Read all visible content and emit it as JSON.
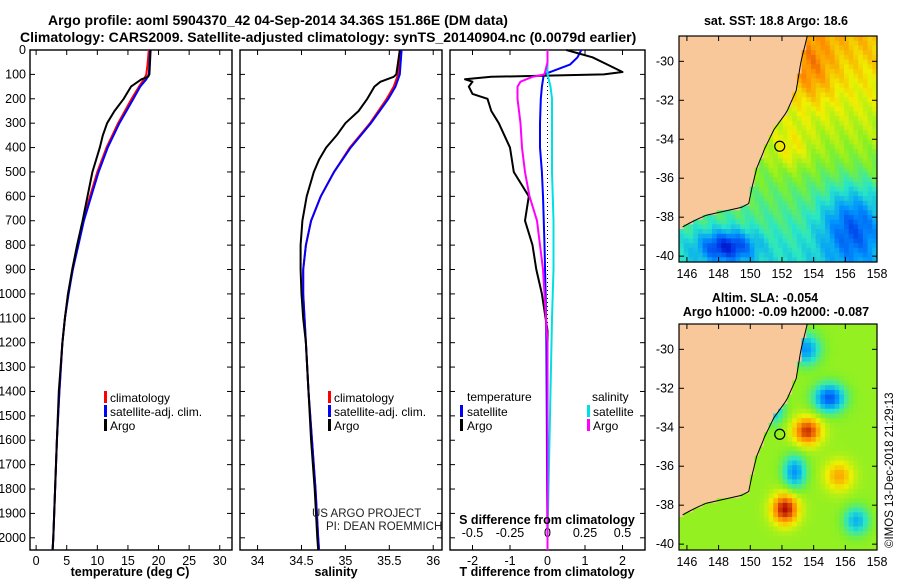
{
  "header": {
    "line1": "Argo profile: aoml 5904370_42 04-Sep-2014 34.36S 151.86E (DM data)",
    "line2": "Climatology: CARS2009. Satellite-adjusted climatology: synTS_20140904.nc (0.0079d earlier)"
  },
  "map_sst": {
    "title": "sat. SST: 18.8 Argo: 18.6",
    "lon_ticks": [
      "146",
      "148",
      "150",
      "152",
      "154",
      "156",
      "158"
    ],
    "lat_ticks": [
      "-30",
      "-32",
      "-34",
      "-36",
      "-38",
      "-40"
    ],
    "lon_range": [
      145.5,
      158
    ],
    "lat_range": [
      -40.3,
      -28.7
    ],
    "argo_position": {
      "lon": 151.86,
      "lat": -34.36
    }
  },
  "map_sla": {
    "title_line1": "Altim. SLA: -0.054",
    "title_line2": "Argo h1000: -0.09 h2000: -0.087",
    "lon_ticks": [
      "146",
      "148",
      "150",
      "152",
      "154",
      "156",
      "158"
    ],
    "lat_ticks": [
      "-30",
      "-32",
      "-34",
      "-36",
      "-38",
      "-40"
    ],
    "lon_range": [
      145.5,
      158
    ],
    "lat_range": [
      -40.3,
      -28.7
    ],
    "argo_position": {
      "lon": 151.86,
      "lat": -34.36
    }
  },
  "credits": {
    "project_line1": "US ARGO PROJECT",
    "project_line2": "PI: DEAN ROEMMICH",
    "stamp": "©IMOS 13-Dec-2018 21:29:13"
  },
  "colors": {
    "climatology": "#ff0000",
    "satellite": "#0000ff",
    "argo": "#000000",
    "satellite_s": "#00e0e0",
    "argo_s": "#ff00ff",
    "land": "#f8c89a"
  },
  "chart_data": [
    {
      "type": "line",
      "xlabel": "temperature (deg C)",
      "ylabel": "",
      "xlim": [
        -1,
        32
      ],
      "ylim": [
        2050,
        0
      ],
      "x_ticks": [
        "0",
        "5",
        "10",
        "15",
        "20",
        "25",
        "30"
      ],
      "y_ticks": [
        "0",
        "100",
        "200",
        "300",
        "400",
        "500",
        "600",
        "700",
        "800",
        "900",
        "1000",
        "1100",
        "1200",
        "1300",
        "1400",
        "1500",
        "1600",
        "1700",
        "1800",
        "1900",
        "2000"
      ],
      "legend": [
        "climatology",
        "satellite-adj. clim.",
        "Argo"
      ],
      "series": [
        {
          "name": "climatology",
          "depth": [
            0,
            60,
            100,
            120,
            150,
            200,
            300,
            400,
            500,
            600,
            700,
            800,
            900,
            1000,
            1100,
            1200,
            1400,
            1600,
            1800,
            2000,
            2050
          ],
          "values": [
            18.4,
            18.2,
            18.0,
            17.6,
            16.8,
            15.6,
            13.4,
            11.5,
            10.0,
            8.8,
            7.7,
            6.8,
            6.0,
            5.2,
            4.7,
            4.3,
            3.8,
            3.4,
            3.1,
            2.8,
            2.7
          ]
        },
        {
          "name": "satellite-adj. clim.",
          "depth": [
            0,
            60,
            100,
            120,
            150,
            200,
            300,
            400,
            500,
            600,
            700,
            800,
            900,
            1000,
            1100,
            1200,
            1400,
            1600,
            1800,
            2000,
            2050
          ],
          "values": [
            18.6,
            18.5,
            18.4,
            18.0,
            17.0,
            15.9,
            13.6,
            11.7,
            10.2,
            9.0,
            7.8,
            6.9,
            6.0,
            5.3,
            4.7,
            4.3,
            3.8,
            3.4,
            3.1,
            2.8,
            2.7
          ]
        },
        {
          "name": "Argo",
          "depth": [
            0,
            50,
            100,
            110,
            120,
            150,
            200,
            250,
            300,
            350,
            400,
            450,
            500,
            600,
            700,
            800,
            900,
            1000,
            1100,
            1200,
            1400,
            1600,
            1800,
            2000,
            2050
          ],
          "values": [
            18.7,
            18.6,
            18.5,
            18.3,
            17.2,
            15.5,
            14.3,
            12.8,
            11.6,
            10.9,
            10.4,
            9.8,
            9.2,
            8.4,
            7.6,
            6.7,
            5.9,
            5.2,
            4.7,
            4.3,
            3.7,
            3.4,
            3.1,
            2.8,
            2.7
          ]
        }
      ]
    },
    {
      "type": "line",
      "xlabel": "salinity",
      "ylabel": "",
      "xlim": [
        33.8,
        36.1
      ],
      "ylim": [
        2050,
        0
      ],
      "x_ticks": [
        "34",
        "34.5",
        "35",
        "35.5",
        "36"
      ],
      "legend": [
        "climatology",
        "satellite-adj. clim.",
        "Argo"
      ],
      "series": [
        {
          "name": "climatology",
          "depth": [
            0,
            100,
            150,
            200,
            300,
            400,
            500,
            600,
            700,
            800,
            900,
            1000,
            1200,
            1400,
            1600,
            1800,
            2000,
            2050
          ],
          "values": [
            35.62,
            35.6,
            35.55,
            35.47,
            35.28,
            35.05,
            34.87,
            34.72,
            34.61,
            34.55,
            34.52,
            34.52,
            34.55,
            34.58,
            34.62,
            34.66,
            34.69,
            34.7
          ]
        },
        {
          "name": "satellite-adj. clim.",
          "depth": [
            0,
            100,
            150,
            200,
            300,
            400,
            500,
            600,
            700,
            800,
            900,
            1000,
            1200,
            1400,
            1600,
            1800,
            2000,
            2050
          ],
          "values": [
            35.64,
            35.62,
            35.57,
            35.49,
            35.29,
            35.06,
            34.87,
            34.72,
            34.61,
            34.55,
            34.52,
            34.52,
            34.55,
            34.58,
            34.62,
            34.66,
            34.69,
            34.7
          ]
        },
        {
          "name": "Argo",
          "depth": [
            0,
            50,
            100,
            110,
            130,
            150,
            200,
            250,
            300,
            350,
            400,
            450,
            500,
            600,
            700,
            800,
            900,
            1000,
            1100,
            1200,
            1400,
            1600,
            1800,
            2000,
            2050
          ],
          "values": [
            35.62,
            35.6,
            35.58,
            35.55,
            35.4,
            35.33,
            35.25,
            35.15,
            35.0,
            34.9,
            34.78,
            34.7,
            34.64,
            34.56,
            34.51,
            34.49,
            34.49,
            34.5,
            34.52,
            34.55,
            34.58,
            34.61,
            34.65,
            34.68,
            34.69
          ]
        }
      ]
    },
    {
      "type": "line",
      "xlabel": "T difference from climatology",
      "top_xlabel": "S difference from climatology",
      "xlim": [
        -2.6,
        2.6
      ],
      "ylim": [
        2050,
        0
      ],
      "x_ticks": [
        "-2",
        "-1",
        "0",
        "1",
        "2"
      ],
      "top_x_ticks": [
        "-0.5",
        "-0.25",
        "0",
        "0.25",
        "0.5"
      ],
      "top_xlim": [
        -0.65,
        0.65
      ],
      "legend_headers": [
        "temperature",
        "salinity"
      ],
      "legend_left": [
        "satellite",
        "Argo"
      ],
      "legend_right": [
        "satellite",
        "Argo"
      ],
      "series": [
        {
          "name": "temperature satellite",
          "depth": [
            0,
            30,
            60,
            100,
            150,
            200,
            300,
            400,
            500,
            600,
            800,
            1000,
            1200,
            1500,
            1800,
            2000,
            2050
          ],
          "values": [
            0.9,
            0.8,
            0.6,
            -0.1,
            -0.15,
            -0.18,
            -0.2,
            -0.2,
            -0.15,
            -0.12,
            -0.08,
            -0.05,
            -0.03,
            -0.02,
            -0.01,
            0,
            0
          ]
        },
        {
          "name": "temperature Argo",
          "depth": [
            0,
            30,
            60,
            90,
            100,
            110,
            120,
            130,
            150,
            180,
            200,
            250,
            300,
            400,
            500,
            600,
            700,
            800,
            900,
            1000,
            1100,
            1150,
            1200,
            1500,
            1800,
            2000,
            2050
          ],
          "values": [
            0.5,
            1.2,
            1.6,
            2.0,
            1.5,
            -1.5,
            -2.2,
            -2.0,
            -2.1,
            -2.0,
            -1.6,
            -1.5,
            -1.3,
            -1.0,
            -0.9,
            -0.5,
            -0.6,
            -0.4,
            -0.3,
            -0.15,
            -0.05,
            0,
            0,
            0,
            0,
            0,
            0
          ]
        },
        {
          "name": "salinity satellite",
          "depth": [
            0,
            50,
            100,
            150,
            200,
            300,
            500,
            700,
            900,
            1100,
            1400,
            1700,
            2000,
            2050
          ],
          "values": [
            0.0,
            0.0,
            0.0,
            0.02,
            0.03,
            0.03,
            0.03,
            0.04,
            0.04,
            0.03,
            0.02,
            0.01,
            0,
            0
          ]
        },
        {
          "name": "salinity Argo",
          "depth": [
            0,
            50,
            100,
            110,
            130,
            150,
            200,
            300,
            400,
            500,
            600,
            700,
            800,
            900,
            1000,
            1100,
            1200,
            1400,
            1600,
            1800,
            2000,
            2050
          ],
          "values": [
            0.0,
            0.0,
            -0.02,
            -0.1,
            -0.18,
            -0.2,
            -0.2,
            -0.18,
            -0.17,
            -0.15,
            -0.12,
            -0.07,
            -0.05,
            -0.03,
            -0.02,
            -0.01,
            0,
            0,
            0,
            0,
            0,
            0
          ]
        }
      ]
    }
  ]
}
